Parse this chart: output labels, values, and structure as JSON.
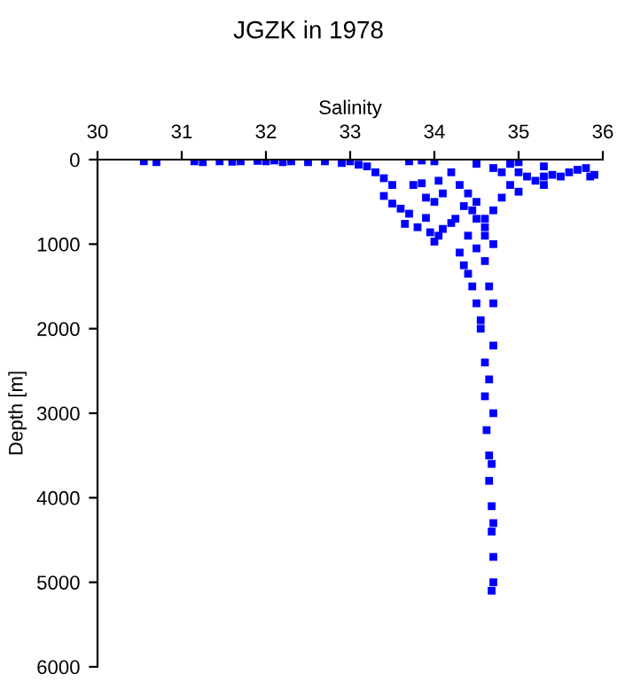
{
  "chart_data": {
    "type": "scatter",
    "title": "JGZK in 1978",
    "xlabel": "Salinity",
    "ylabel": "Depth [m]",
    "xlim": [
      30,
      36
    ],
    "xticks": [
      30,
      31,
      32,
      33,
      34,
      35,
      36
    ],
    "ylim": [
      6000,
      0
    ],
    "yticks": [
      0,
      1000,
      2000,
      3000,
      4000,
      5000,
      6000
    ],
    "grid": false,
    "marker": "square",
    "series": [
      {
        "color": "#0000ff",
        "x": [
          30.55,
          30.7,
          31.15,
          31.25,
          31.45,
          31.6,
          31.7,
          31.9,
          32.0,
          32.1,
          32.2,
          32.3,
          32.5,
          32.7,
          32.9,
          33.0,
          33.1,
          33.2,
          33.3,
          33.4,
          33.5,
          33.4,
          33.5,
          33.6,
          33.7,
          33.65,
          33.8,
          33.9,
          33.95,
          34.0,
          34.05,
          34.1,
          34.2,
          34.25,
          34.3,
          34.35,
          34.4,
          34.45,
          34.5,
          34.55,
          34.6,
          34.6,
          34.62,
          34.65,
          34.65,
          34.68,
          34.68,
          34.7,
          34.7,
          34.68,
          33.7,
          33.85,
          34.0,
          34.05,
          34.1,
          34.0,
          33.9,
          33.75,
          33.85,
          34.2,
          34.3,
          34.4,
          34.5,
          34.5,
          34.6,
          34.7,
          34.6,
          34.5,
          34.4,
          34.5,
          34.7,
          34.9,
          35.0,
          35.1,
          35.2,
          35.3,
          35.4,
          35.5,
          35.6,
          35.7,
          35.8,
          35.9,
          35.85,
          35.3,
          35.0,
          34.8,
          34.9,
          34.8,
          35.0,
          35.3,
          34.7,
          34.6,
          34.45,
          34.35,
          34.6,
          34.65,
          34.7,
          34.55,
          34.7,
          34.65,
          34.7,
          34.68,
          34.7
        ],
        "values": [
          20,
          30,
          20,
          30,
          20,
          25,
          20,
          15,
          20,
          10,
          30,
          20,
          30,
          20,
          40,
          20,
          60,
          80,
          150,
          220,
          300,
          430,
          520,
          580,
          640,
          760,
          800,
          690,
          860,
          970,
          900,
          820,
          750,
          700,
          1100,
          1250,
          1350,
          1500,
          1700,
          2000,
          2400,
          2800,
          3200,
          3500,
          3800,
          4100,
          4400,
          4700,
          5000,
          5100,
          20,
          10,
          20,
          250,
          400,
          500,
          450,
          300,
          280,
          150,
          300,
          400,
          500,
          700,
          900,
          1000,
          1200,
          1050,
          900,
          50,
          100,
          50,
          150,
          200,
          250,
          200,
          180,
          200,
          150,
          120,
          100,
          180,
          200,
          80,
          30,
          150,
          300,
          450,
          380,
          300,
          600,
          700,
          600,
          550,
          800,
          1500,
          1700,
          1900,
          2200,
          2600,
          3000,
          3600,
          4300
        ]
      }
    ]
  }
}
